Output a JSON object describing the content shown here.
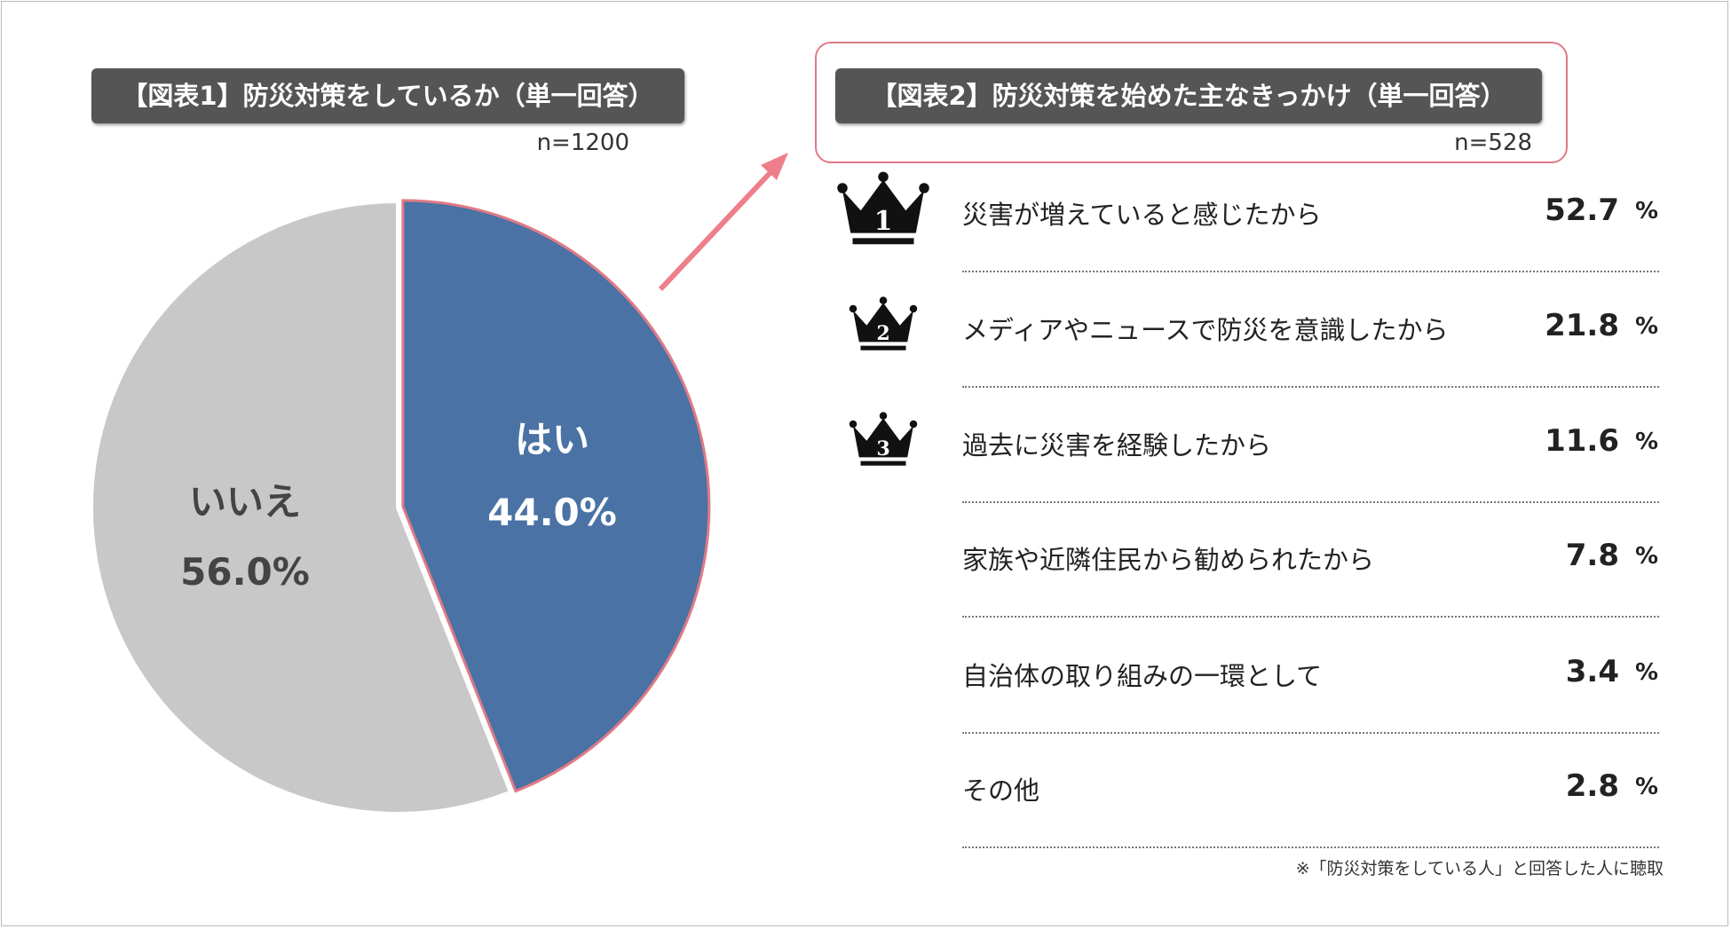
{
  "chart_data": [
    {
      "type": "pie",
      "title": "【図表1】防災対策をしているか（単一回答）",
      "n": "n=1200",
      "slices": [
        {
          "label": "はい",
          "value": 44.0,
          "display": "44.0%",
          "color": "#4a72a4"
        },
        {
          "label": "いいえ",
          "value": 56.0,
          "display": "56.0%",
          "color": "#c8c8c8"
        }
      ]
    },
    {
      "type": "table",
      "title": "【図表2】防災対策を始めた主なきっかけ（単一回答）",
      "n": "n=528",
      "rows": [
        {
          "rank": "1",
          "label": "災害が増えていると感じたから",
          "value": "52.7",
          "unit": "%"
        },
        {
          "rank": "2",
          "label": "メディアやニュースで防災を意識したから",
          "value": "21.8",
          "unit": "%"
        },
        {
          "rank": "3",
          "label": "過去に災害を経験したから",
          "value": "11.6",
          "unit": "%"
        },
        {
          "rank": "",
          "label": "家族や近隣住民から勧められたから",
          "value": "7.8",
          "unit": "%"
        },
        {
          "rank": "",
          "label": "自治体の取り組みの一環として",
          "value": "3.4",
          "unit": "%"
        },
        {
          "rank": "",
          "label": "その他",
          "value": "2.8",
          "unit": "%"
        }
      ],
      "footnote": "※「防災対策をしている人」と回答した人に聴取"
    }
  ],
  "colors": {
    "highlight": "#e07a86",
    "title_bg": "#555555"
  }
}
